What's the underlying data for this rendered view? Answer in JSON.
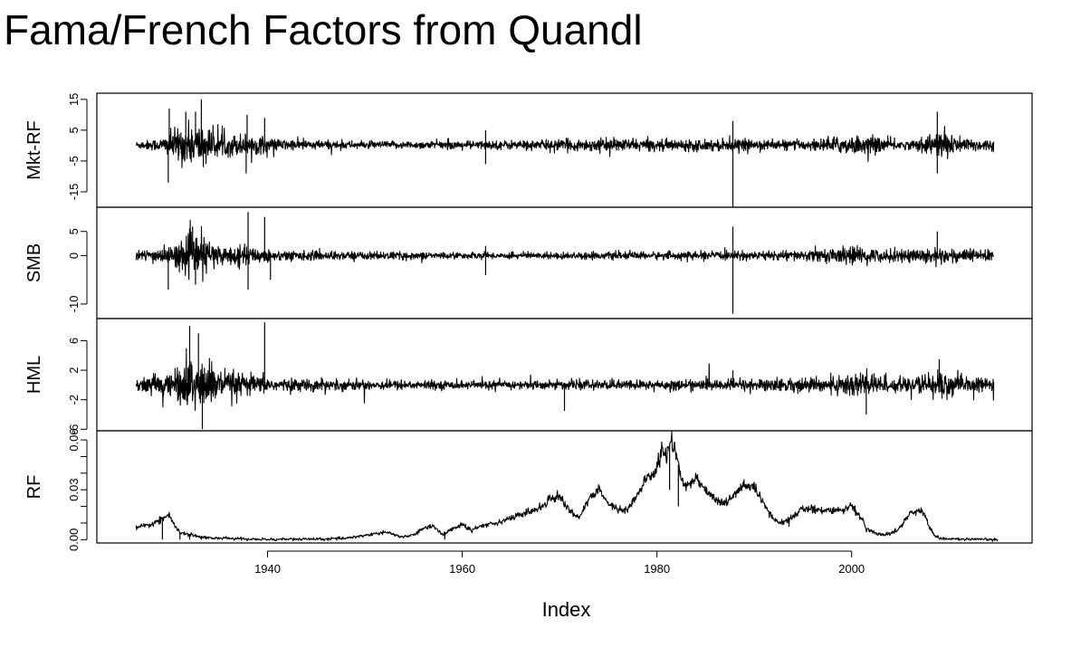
{
  "title": "Fama/French Factors from Quandl",
  "chart_data": {
    "type": "line",
    "title": "Fama/French Factors from Quandl",
    "xlabel": "Index",
    "x_range": [
      1926,
      2015
    ],
    "x_ticks": [
      1940,
      1960,
      1980,
      2000
    ],
    "x_tick_labels": [
      "1940",
      "1960",
      "1980",
      "2000"
    ],
    "panels": [
      {
        "name": "Mkt-RF",
        "ylim": [
          -20,
          17
        ],
        "y_ticks": [
          -15,
          -5,
          5,
          15
        ],
        "y_tick_labels": [
          "-15",
          "-5",
          "5",
          "15"
        ],
        "kind": "noise",
        "baseline": 0.2,
        "volatility": [
          {
            "x": 1926,
            "v": 0.5
          },
          {
            "x": 1929,
            "v": 1.0
          },
          {
            "x": 1931,
            "v": 3.0
          },
          {
            "x": 1933,
            "v": 3.4
          },
          {
            "x": 1935,
            "v": 1.6
          },
          {
            "x": 1938,
            "v": 1.8
          },
          {
            "x": 1941,
            "v": 0.9
          },
          {
            "x": 1950,
            "v": 0.55
          },
          {
            "x": 1962,
            "v": 0.65
          },
          {
            "x": 1970,
            "v": 0.85
          },
          {
            "x": 1975,
            "v": 1.0
          },
          {
            "x": 1980,
            "v": 0.85
          },
          {
            "x": 1987,
            "v": 0.9
          },
          {
            "x": 1995,
            "v": 0.7
          },
          {
            "x": 2000,
            "v": 1.5
          },
          {
            "x": 2003,
            "v": 1.2
          },
          {
            "x": 2006,
            "v": 0.6
          },
          {
            "x": 2008,
            "v": 1.6
          },
          {
            "x": 2009.5,
            "v": 2.4
          },
          {
            "x": 2011,
            "v": 1.2
          },
          {
            "x": 2015,
            "v": 0.8
          }
        ],
        "spikes": [
          {
            "x": 1929.8,
            "y": -12
          },
          {
            "x": 1929.9,
            "y": 12
          },
          {
            "x": 1931.6,
            "y": 11
          },
          {
            "x": 1932.6,
            "y": 11
          },
          {
            "x": 1933.2,
            "y": 15
          },
          {
            "x": 1933.4,
            "y": -7
          },
          {
            "x": 1937.8,
            "y": -9
          },
          {
            "x": 1937.9,
            "y": 10
          },
          {
            "x": 1939.7,
            "y": 9
          },
          {
            "x": 1962.4,
            "y": 5
          },
          {
            "x": 1962.4,
            "y": -6
          },
          {
            "x": 1987.8,
            "y": -20
          },
          {
            "x": 1987.8,
            "y": 8
          },
          {
            "x": 2008.8,
            "y": 11
          },
          {
            "x": 2008.8,
            "y": -9
          }
        ]
      },
      {
        "name": "SMB",
        "ylim": [
          -13,
          10
        ],
        "y_ticks": [
          -10,
          0,
          5
        ],
        "y_tick_labels": [
          "-10",
          "0",
          "5"
        ],
        "kind": "noise",
        "baseline": 0,
        "volatility": [
          {
            "x": 1926,
            "v": 0.4
          },
          {
            "x": 1930,
            "v": 0.9
          },
          {
            "x": 1932,
            "v": 1.9
          },
          {
            "x": 1933,
            "v": 2.2
          },
          {
            "x": 1935,
            "v": 1.0
          },
          {
            "x": 1938,
            "v": 0.9
          },
          {
            "x": 1941,
            "v": 0.5
          },
          {
            "x": 1960,
            "v": 0.3
          },
          {
            "x": 1975,
            "v": 0.35
          },
          {
            "x": 1987,
            "v": 0.4
          },
          {
            "x": 1995,
            "v": 0.5
          },
          {
            "x": 2000,
            "v": 0.9
          },
          {
            "x": 2003,
            "v": 0.6
          },
          {
            "x": 2009,
            "v": 0.8
          },
          {
            "x": 2015,
            "v": 0.5
          }
        ],
        "spikes": [
          {
            "x": 1929.8,
            "y": -7
          },
          {
            "x": 1932.3,
            "y": 6
          },
          {
            "x": 1932.6,
            "y": -6
          },
          {
            "x": 1938.0,
            "y": 9
          },
          {
            "x": 1938.0,
            "y": -7
          },
          {
            "x": 1939.7,
            "y": 8
          },
          {
            "x": 1940.3,
            "y": -5
          },
          {
            "x": 1962.4,
            "y": -4
          },
          {
            "x": 1962.4,
            "y": 2
          },
          {
            "x": 1987.8,
            "y": -12
          },
          {
            "x": 1987.8,
            "y": 6
          },
          {
            "x": 2008.8,
            "y": 5
          }
        ]
      },
      {
        "name": "HML",
        "ylim": [
          -6.2,
          9
        ],
        "y_ticks": [
          -6,
          -2,
          2,
          6
        ],
        "y_tick_labels": [
          "-6",
          "-2",
          "2",
          "6"
        ],
        "kind": "noise",
        "baseline": 0,
        "volatility": [
          {
            "x": 1926,
            "v": 0.4
          },
          {
            "x": 1930,
            "v": 0.8
          },
          {
            "x": 1932,
            "v": 1.8
          },
          {
            "x": 1933,
            "v": 2.0
          },
          {
            "x": 1935,
            "v": 1.0
          },
          {
            "x": 1938,
            "v": 0.7
          },
          {
            "x": 1941,
            "v": 0.4
          },
          {
            "x": 1960,
            "v": 0.25
          },
          {
            "x": 1975,
            "v": 0.3
          },
          {
            "x": 1987,
            "v": 0.35
          },
          {
            "x": 1998,
            "v": 0.5
          },
          {
            "x": 2001,
            "v": 1.1
          },
          {
            "x": 2003,
            "v": 0.6
          },
          {
            "x": 2006,
            "v": 0.35
          },
          {
            "x": 2009,
            "v": 1.1
          },
          {
            "x": 2011,
            "v": 0.5
          },
          {
            "x": 2015,
            "v": 0.45
          }
        ],
        "spikes": [
          {
            "x": 1932.0,
            "y": 8
          },
          {
            "x": 1932.9,
            "y": 7
          },
          {
            "x": 1933.3,
            "y": -6
          },
          {
            "x": 1939.7,
            "y": 8.5
          },
          {
            "x": 1970.5,
            "y": -3.5
          },
          {
            "x": 1987.8,
            "y": 2
          },
          {
            "x": 2001.5,
            "y": -4
          },
          {
            "x": 2009.0,
            "y": 3.5
          }
        ]
      },
      {
        "name": "RF",
        "ylim": [
          -0.002,
          0.0655
        ],
        "y_ticks": [
          0.0,
          0.01,
          0.02,
          0.03,
          0.04,
          0.05,
          0.06
        ],
        "y_tick_labels": [
          "0.00",
          "",
          "",
          "0.03",
          "",
          "",
          "0.06"
        ],
        "kind": "level",
        "x": [
          1926.5,
          1928,
          1929,
          1929.8,
          1930.5,
          1931,
          1932,
          1933,
          1934,
          1936,
          1938,
          1940,
          1942,
          1946,
          1947,
          1948,
          1950,
          1952,
          1954,
          1955,
          1956,
          1957,
          1958,
          1959,
          1960,
          1961,
          1962,
          1964,
          1966,
          1967,
          1968,
          1969,
          1970,
          1971,
          1972,
          1973,
          1974,
          1975,
          1976,
          1977,
          1978,
          1979,
          1980,
          1980.5,
          1981,
          1981.5,
          1982,
          1982.5,
          1983,
          1984,
          1985,
          1986,
          1987,
          1988,
          1989,
          1990,
          1991,
          1992,
          1993,
          1994,
          1995,
          1996,
          1998,
          1999,
          2000,
          2001,
          2001.5,
          2002,
          2003,
          2004,
          2005,
          2006,
          2007,
          2007.5,
          2008,
          2008.5,
          2009,
          2012,
          2015
        ],
        "y": [
          0.007,
          0.009,
          0.012,
          0.015,
          0.008,
          0.004,
          0.003,
          0.002,
          0.001,
          0.0008,
          0.0003,
          0.0001,
          0.0003,
          0.0003,
          0.0006,
          0.001,
          0.0025,
          0.0045,
          0.0015,
          0.003,
          0.0065,
          0.0085,
          0.003,
          0.0065,
          0.009,
          0.0055,
          0.0085,
          0.011,
          0.015,
          0.017,
          0.019,
          0.025,
          0.026,
          0.018,
          0.013,
          0.024,
          0.03,
          0.022,
          0.018,
          0.018,
          0.027,
          0.037,
          0.042,
          0.055,
          0.05,
          0.06,
          0.052,
          0.035,
          0.032,
          0.038,
          0.03,
          0.024,
          0.022,
          0.027,
          0.033,
          0.031,
          0.021,
          0.012,
          0.01,
          0.014,
          0.019,
          0.018,
          0.018,
          0.017,
          0.021,
          0.013,
          0.006,
          0.005,
          0.003,
          0.0035,
          0.0075,
          0.016,
          0.018,
          0.015,
          0.007,
          0.003,
          0.0008,
          0.0001,
          0.0001
        ],
        "spikes": [
          {
            "x": 1929.2,
            "y": 0.0
          },
          {
            "x": 1931.0,
            "y": 0.0
          },
          {
            "x": 1932.0,
            "y": 0.0
          },
          {
            "x": 1933.2,
            "y": 0.0
          },
          {
            "x": 1958.2,
            "y": 0.0
          },
          {
            "x": 1981.3,
            "y": 0.03
          },
          {
            "x": 1982.2,
            "y": 0.02
          }
        ]
      }
    ],
    "grid": false,
    "legend": "none"
  }
}
